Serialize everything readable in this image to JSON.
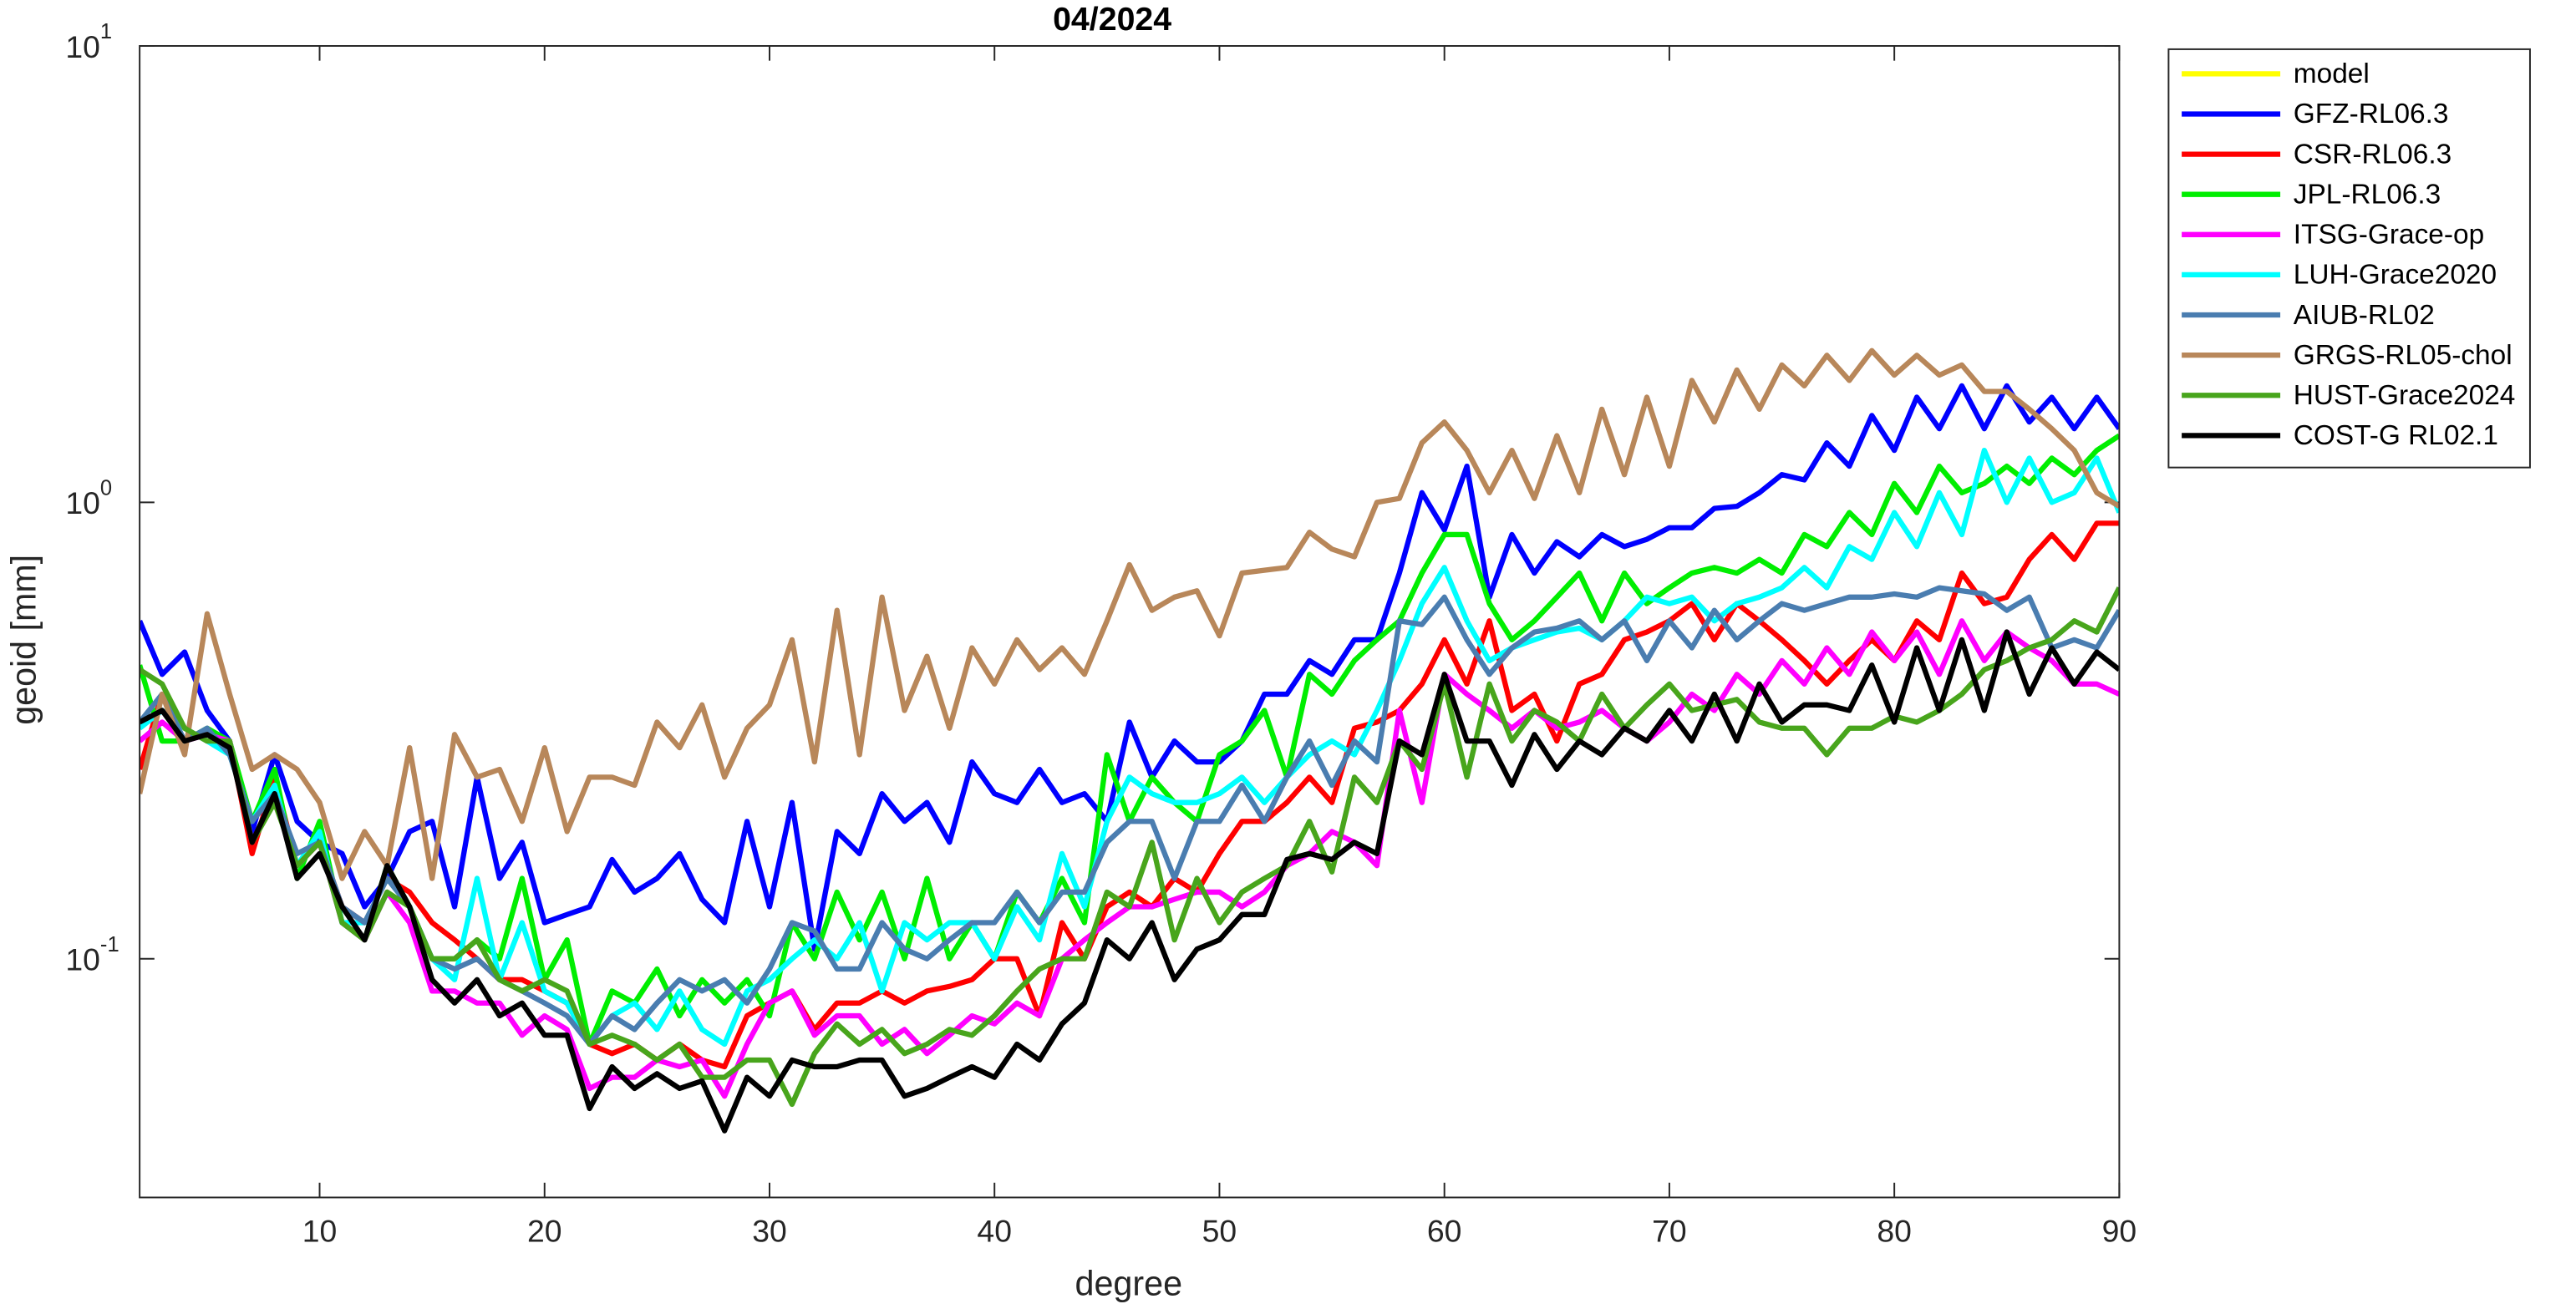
{
  "chart_data": {
    "type": "line",
    "title": "04/2024",
    "x_label": "degree",
    "y_label": "geoid [mm]",
    "y_scale": "log",
    "legend": "northeastoutside",
    "xlim": [
      2,
      90
    ],
    "xticks": [
      10,
      20,
      30,
      40,
      50,
      60,
      70,
      80,
      90
    ],
    "ylim": [
      0.03,
      10
    ],
    "yticks": [
      {
        "value": 0.1,
        "label": "10",
        "exponent": "-1"
      },
      {
        "value": 1,
        "label": "10",
        "exponent": "0"
      },
      {
        "value": 10,
        "label": "10",
        "exponent": "1"
      }
    ],
    "x": [
      2,
      3,
      4,
      5,
      6,
      7,
      8,
      9,
      10,
      11,
      12,
      13,
      14,
      15,
      16,
      17,
      18,
      19,
      20,
      21,
      22,
      23,
      24,
      25,
      26,
      27,
      28,
      29,
      30,
      31,
      32,
      33,
      34,
      35,
      36,
      37,
      38,
      39,
      40,
      41,
      42,
      43,
      44,
      45,
      46,
      47,
      48,
      49,
      50,
      51,
      52,
      53,
      54,
      55,
      56,
      57,
      58,
      59,
      60,
      61,
      62,
      63,
      64,
      65,
      66,
      67,
      68,
      69,
      70,
      71,
      72,
      73,
      74,
      75,
      76,
      77,
      78,
      79,
      80,
      81,
      82,
      83,
      84,
      85,
      86,
      87,
      88,
      89,
      90
    ],
    "series": [
      {
        "name": "model",
        "color": "#ffff00",
        "values": [
          null,
          null,
          null,
          null,
          null,
          null,
          null,
          null,
          null,
          null,
          null,
          null,
          null,
          null,
          null,
          null,
          null,
          null,
          null,
          null,
          null,
          null,
          null,
          null,
          null,
          null,
          null,
          null,
          null,
          null,
          null,
          null,
          null,
          null,
          null,
          null,
          null,
          null,
          null,
          null,
          null,
          null,
          null,
          null,
          null,
          null,
          null,
          null,
          null,
          null,
          null,
          null,
          null,
          null,
          null,
          null,
          null,
          null,
          null,
          null,
          null,
          null,
          null,
          null,
          null,
          null,
          null,
          null,
          null,
          null,
          null,
          null,
          null,
          null,
          null,
          null,
          null,
          null,
          null,
          null,
          null,
          null,
          null,
          null,
          null,
          null,
          null,
          null,
          null
        ]
      },
      {
        "name": "GFZ-RL06.3",
        "color": "#0000ff",
        "values": [
          0.55,
          0.42,
          0.47,
          0.35,
          0.3,
          0.19,
          0.28,
          0.2,
          0.18,
          0.17,
          0.13,
          0.15,
          0.19,
          0.2,
          0.13,
          0.25,
          0.15,
          0.18,
          0.12,
          0.125,
          0.13,
          0.165,
          0.14,
          0.15,
          0.17,
          0.135,
          0.12,
          0.2,
          0.13,
          0.22,
          0.105,
          0.19,
          0.17,
          0.23,
          0.2,
          0.22,
          0.18,
          0.27,
          0.23,
          0.22,
          0.26,
          0.22,
          0.23,
          0.2,
          0.33,
          0.25,
          0.3,
          0.27,
          0.27,
          0.3,
          0.38,
          0.38,
          0.45,
          0.42,
          0.5,
          0.5,
          0.7,
          1.05,
          0.87,
          1.2,
          0.62,
          0.85,
          0.7,
          0.82,
          0.76,
          0.85,
          0.8,
          0.83,
          0.88,
          0.88,
          0.97,
          0.98,
          1.05,
          1.15,
          1.12,
          1.35,
          1.2,
          1.55,
          1.3,
          1.7,
          1.45,
          1.8,
          1.45,
          1.8,
          1.5,
          1.7,
          1.45,
          1.7,
          1.45
        ]
      },
      {
        "name": "CSR-RL06.3",
        "color": "#ff0000",
        "values": [
          0.26,
          0.38,
          0.32,
          0.3,
          0.3,
          0.17,
          0.25,
          0.16,
          0.18,
          0.13,
          0.12,
          0.15,
          0.14,
          0.12,
          0.11,
          0.1,
          0.09,
          0.09,
          0.085,
          0.08,
          0.065,
          0.062,
          0.065,
          0.06,
          0.065,
          0.06,
          0.058,
          0.075,
          0.08,
          0.085,
          0.07,
          0.08,
          0.08,
          0.085,
          0.08,
          0.085,
          0.087,
          0.09,
          0.1,
          0.1,
          0.075,
          0.12,
          0.1,
          0.13,
          0.14,
          0.13,
          0.15,
          0.14,
          0.17,
          0.2,
          0.2,
          0.22,
          0.25,
          0.22,
          0.32,
          0.33,
          0.35,
          0.4,
          0.5,
          0.4,
          0.55,
          0.35,
          0.38,
          0.3,
          0.4,
          0.42,
          0.5,
          0.52,
          0.55,
          0.6,
          0.5,
          0.6,
          0.55,
          0.5,
          0.45,
          0.4,
          0.45,
          0.5,
          0.45,
          0.55,
          0.5,
          0.7,
          0.6,
          0.62,
          0.75,
          0.85,
          0.75,
          0.9,
          0.9
        ]
      },
      {
        "name": "JPL-RL06.3",
        "color": "#00ee00",
        "values": [
          0.44,
          0.3,
          0.3,
          0.32,
          0.3,
          0.2,
          0.26,
          0.15,
          0.2,
          0.12,
          0.11,
          0.16,
          0.13,
          0.1,
          0.1,
          0.11,
          0.1,
          0.15,
          0.09,
          0.11,
          0.065,
          0.085,
          0.08,
          0.095,
          0.075,
          0.09,
          0.08,
          0.09,
          0.075,
          0.12,
          0.1,
          0.14,
          0.11,
          0.14,
          0.1,
          0.15,
          0.1,
          0.12,
          0.1,
          0.14,
          0.12,
          0.15,
          0.12,
          0.28,
          0.2,
          0.25,
          0.22,
          0.2,
          0.28,
          0.3,
          0.35,
          0.25,
          0.42,
          0.38,
          0.45,
          0.5,
          0.55,
          0.7,
          0.85,
          0.85,
          0.6,
          0.5,
          0.55,
          0.62,
          0.7,
          0.55,
          0.7,
          0.6,
          0.65,
          0.7,
          0.72,
          0.7,
          0.75,
          0.7,
          0.85,
          0.8,
          0.95,
          0.85,
          1.1,
          0.95,
          1.2,
          1.05,
          1.1,
          1.2,
          1.1,
          1.25,
          1.15,
          1.3,
          1.4
        ]
      },
      {
        "name": "ITSG-Grace-op",
        "color": "#ff00ff",
        "values": [
          0.3,
          0.33,
          0.3,
          0.31,
          0.3,
          0.18,
          0.23,
          0.16,
          0.18,
          0.12,
          0.11,
          0.14,
          0.12,
          0.085,
          0.085,
          0.08,
          0.08,
          0.068,
          0.075,
          0.07,
          0.052,
          0.055,
          0.055,
          0.06,
          0.058,
          0.06,
          0.05,
          0.065,
          0.08,
          0.085,
          0.068,
          0.075,
          0.075,
          0.065,
          0.07,
          0.062,
          0.068,
          0.075,
          0.072,
          0.08,
          0.075,
          0.1,
          0.11,
          0.12,
          0.13,
          0.13,
          0.135,
          0.14,
          0.14,
          0.13,
          0.14,
          0.16,
          0.17,
          0.19,
          0.18,
          0.16,
          0.35,
          0.22,
          0.42,
          0.38,
          0.35,
          0.32,
          0.35,
          0.32,
          0.33,
          0.35,
          0.32,
          0.3,
          0.33,
          0.38,
          0.35,
          0.42,
          0.38,
          0.45,
          0.4,
          0.48,
          0.42,
          0.52,
          0.45,
          0.52,
          0.42,
          0.55,
          0.45,
          0.52,
          0.48,
          0.45,
          0.4,
          0.4,
          0.38
        ]
      },
      {
        "name": "LUH-Grace2020",
        "color": "#00ffff",
        "values": [
          0.32,
          0.35,
          0.32,
          0.3,
          0.28,
          0.2,
          0.24,
          0.16,
          0.19,
          0.12,
          0.12,
          0.15,
          0.13,
          0.1,
          0.09,
          0.15,
          0.09,
          0.12,
          0.085,
          0.08,
          0.065,
          0.075,
          0.08,
          0.07,
          0.085,
          0.07,
          0.065,
          0.085,
          0.09,
          0.1,
          0.11,
          0.1,
          0.12,
          0.085,
          0.12,
          0.11,
          0.12,
          0.12,
          0.1,
          0.13,
          0.11,
          0.17,
          0.13,
          0.2,
          0.25,
          0.23,
          0.22,
          0.22,
          0.23,
          0.25,
          0.22,
          0.25,
          0.28,
          0.3,
          0.28,
          0.35,
          0.45,
          0.6,
          0.72,
          0.55,
          0.45,
          0.48,
          0.5,
          0.52,
          0.53,
          0.5,
          0.55,
          0.62,
          0.6,
          0.62,
          0.55,
          0.6,
          0.62,
          0.65,
          0.72,
          0.65,
          0.8,
          0.75,
          0.95,
          0.8,
          1.05,
          0.85,
          1.3,
          1.0,
          1.25,
          1.0,
          1.05,
          1.25,
          0.95
        ]
      },
      {
        "name": "AIUB-RL02",
        "color": "#4a7db0",
        "values": [
          0.33,
          0.38,
          0.3,
          0.32,
          0.28,
          0.2,
          0.23,
          0.17,
          0.18,
          0.13,
          0.12,
          0.15,
          0.13,
          0.1,
          0.095,
          0.1,
          0.09,
          0.085,
          0.08,
          0.075,
          0.065,
          0.075,
          0.07,
          0.08,
          0.09,
          0.085,
          0.09,
          0.08,
          0.095,
          0.12,
          0.115,
          0.095,
          0.095,
          0.12,
          0.105,
          0.1,
          0.11,
          0.12,
          0.12,
          0.14,
          0.12,
          0.14,
          0.14,
          0.18,
          0.2,
          0.2,
          0.15,
          0.2,
          0.2,
          0.24,
          0.2,
          0.25,
          0.3,
          0.24,
          0.3,
          0.27,
          0.55,
          0.54,
          0.62,
          0.5,
          0.42,
          0.48,
          0.52,
          0.53,
          0.55,
          0.5,
          0.55,
          0.45,
          0.55,
          0.48,
          0.58,
          0.5,
          0.55,
          0.6,
          0.58,
          0.6,
          0.62,
          0.62,
          0.63,
          0.62,
          0.65,
          0.64,
          0.63,
          0.58,
          0.62,
          0.48,
          0.5,
          0.48,
          0.58
        ]
      },
      {
        "name": "GRGS-RL05-chol",
        "color": "#b8875a",
        "values": [
          0.23,
          0.38,
          0.28,
          0.57,
          0.38,
          0.26,
          0.28,
          0.26,
          0.22,
          0.15,
          0.19,
          0.16,
          0.29,
          0.15,
          0.31,
          0.25,
          0.26,
          0.2,
          0.29,
          0.19,
          0.25,
          0.25,
          0.24,
          0.33,
          0.29,
          0.36,
          0.25,
          0.32,
          0.36,
          0.5,
          0.27,
          0.58,
          0.28,
          0.62,
          0.35,
          0.46,
          0.32,
          0.48,
          0.4,
          0.5,
          0.43,
          0.48,
          0.42,
          0.55,
          0.73,
          0.58,
          0.62,
          0.64,
          0.51,
          0.7,
          0.71,
          0.72,
          0.86,
          0.79,
          0.76,
          1.0,
          1.02,
          1.35,
          1.5,
          1.3,
          1.05,
          1.3,
          1.02,
          1.4,
          1.05,
          1.6,
          1.15,
          1.7,
          1.2,
          1.85,
          1.5,
          1.95,
          1.6,
          2.0,
          1.8,
          2.1,
          1.85,
          2.15,
          1.9,
          2.1,
          1.9,
          2.0,
          1.75,
          1.75,
          1.6,
          1.45,
          1.3,
          1.05,
          0.98
        ]
      },
      {
        "name": "HUST-Grace2024",
        "color": "#48a51c",
        "values": [
          0.43,
          0.4,
          0.32,
          0.3,
          0.3,
          0.18,
          0.22,
          0.16,
          0.18,
          0.12,
          0.11,
          0.14,
          0.13,
          0.1,
          0.1,
          0.11,
          0.09,
          0.085,
          0.09,
          0.085,
          0.065,
          0.068,
          0.065,
          0.06,
          0.065,
          0.055,
          0.055,
          0.06,
          0.06,
          0.048,
          0.062,
          0.072,
          0.065,
          0.07,
          0.062,
          0.065,
          0.07,
          0.068,
          0.075,
          0.085,
          0.095,
          0.1,
          0.1,
          0.14,
          0.13,
          0.18,
          0.11,
          0.15,
          0.12,
          0.14,
          0.15,
          0.16,
          0.2,
          0.155,
          0.25,
          0.22,
          0.3,
          0.26,
          0.4,
          0.25,
          0.4,
          0.3,
          0.35,
          0.33,
          0.3,
          0.38,
          0.32,
          0.36,
          0.4,
          0.35,
          0.36,
          0.37,
          0.33,
          0.32,
          0.32,
          0.28,
          0.32,
          0.32,
          0.34,
          0.33,
          0.35,
          0.38,
          0.43,
          0.45,
          0.48,
          0.5,
          0.55,
          0.52,
          0.65
        ]
      },
      {
        "name": "COST-G RL02.1",
        "color": "#000000",
        "values": [
          0.33,
          0.35,
          0.3,
          0.31,
          0.29,
          0.18,
          0.23,
          0.15,
          0.17,
          0.13,
          0.11,
          0.16,
          0.13,
          0.09,
          0.08,
          0.09,
          0.075,
          0.08,
          0.068,
          0.068,
          0.047,
          0.058,
          0.052,
          0.056,
          0.052,
          0.054,
          0.042,
          0.055,
          0.05,
          0.06,
          0.058,
          0.058,
          0.06,
          0.06,
          0.05,
          0.052,
          0.055,
          0.058,
          0.055,
          0.065,
          0.06,
          0.072,
          0.08,
          0.11,
          0.1,
          0.12,
          0.09,
          0.105,
          0.11,
          0.125,
          0.125,
          0.165,
          0.17,
          0.165,
          0.18,
          0.17,
          0.3,
          0.28,
          0.42,
          0.3,
          0.3,
          0.24,
          0.31,
          0.26,
          0.3,
          0.28,
          0.32,
          0.3,
          0.35,
          0.3,
          0.38,
          0.3,
          0.4,
          0.33,
          0.36,
          0.36,
          0.35,
          0.44,
          0.33,
          0.48,
          0.35,
          0.5,
          0.35,
          0.52,
          0.38,
          0.48,
          0.4,
          0.47,
          0.43
        ]
      }
    ]
  }
}
